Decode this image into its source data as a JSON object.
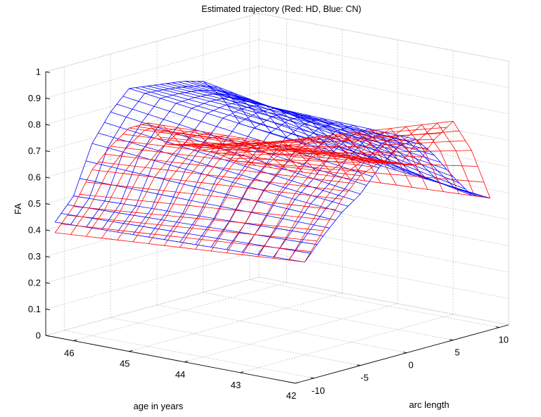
{
  "chart_data": {
    "type": "surface",
    "title": "Estimated trajectory (Red: HD, Blue: CN)",
    "zlabel": "FA",
    "xlabel": "age in years",
    "ylabel": "arc length",
    "zlim": [
      0,
      1
    ],
    "age_range": [
      42,
      46.5
    ],
    "arc_range": [
      -12,
      11
    ],
    "grid": true,
    "z_ticks": [
      "0",
      "0.1",
      "0.2",
      "0.3",
      "0.4",
      "0.5",
      "0.6",
      "0.7",
      "0.8",
      "0.9",
      "1"
    ],
    "age_ticks": [
      "46",
      "45",
      "44",
      "43",
      "42"
    ],
    "arc_ticks": [
      "-10",
      "-5",
      "0",
      "5",
      "10"
    ],
    "series": [
      {
        "name": "CN",
        "color": "#0000ff",
        "ages": [
          42,
          46.5
        ],
        "arc_points": [
          -11,
          -9,
          -7,
          -5,
          -3,
          -1,
          1,
          3,
          5,
          7,
          9
        ],
        "fa_at_age_42": [
          0.45,
          0.53,
          0.6,
          0.65,
          0.73,
          0.79,
          0.8,
          0.72,
          0.62,
          0.53,
          0.5
        ],
        "fa_at_age_46_5": [
          0.42,
          0.5,
          0.68,
          0.78,
          0.85,
          0.84,
          0.83,
          0.82,
          0.8,
          0.72,
          0.6
        ]
      },
      {
        "name": "HD",
        "color": "#ff0000",
        "ages": [
          42,
          46.5
        ],
        "arc_points": [
          -11,
          -9,
          -7,
          -5,
          -3,
          -1,
          1,
          3,
          5,
          7,
          9
        ],
        "fa_at_age_42": [
          0.45,
          0.55,
          0.65,
          0.72,
          0.75,
          0.73,
          0.7,
          0.78,
          0.83,
          0.7,
          0.5
        ],
        "fa_at_age_46_5": [
          0.38,
          0.46,
          0.58,
          0.65,
          0.7,
          0.7,
          0.6,
          0.58,
          0.54,
          0.5,
          0.45
        ]
      }
    ]
  }
}
